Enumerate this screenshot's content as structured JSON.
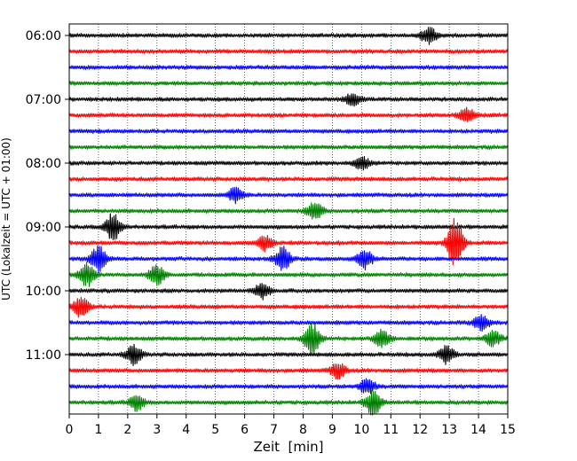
{
  "chart_data": {
    "type": "line",
    "title": "",
    "xlabel": "Zeit  [min]",
    "ylabel": "UTC (Lokalzeit = UTC + 01:00)",
    "xlim": [
      0,
      15
    ],
    "x_ticks": [
      "0",
      "1",
      "2",
      "3",
      "4",
      "5",
      "6",
      "7",
      "8",
      "9",
      "10",
      "11",
      "12",
      "13",
      "14",
      "15"
    ],
    "y_tick_labels": [
      "06:00",
      "07:00",
      "08:00",
      "09:00",
      "10:00",
      "11:00"
    ],
    "grid_x": true,
    "grid_y": false,
    "trace_colors": [
      "#000000",
      "#ff0000",
      "#0000ff",
      "#008000"
    ],
    "traces": [
      {
        "start": "06:00",
        "color": "#000000"
      },
      {
        "start": "06:15",
        "color": "#ff0000"
      },
      {
        "start": "06:30",
        "color": "#0000ff"
      },
      {
        "start": "06:45",
        "color": "#008000"
      },
      {
        "start": "07:00",
        "color": "#000000"
      },
      {
        "start": "07:15",
        "color": "#ff0000"
      },
      {
        "start": "07:30",
        "color": "#0000ff"
      },
      {
        "start": "07:45",
        "color": "#008000"
      },
      {
        "start": "08:00",
        "color": "#000000"
      },
      {
        "start": "08:15",
        "color": "#ff0000"
      },
      {
        "start": "08:30",
        "color": "#0000ff"
      },
      {
        "start": "08:45",
        "color": "#008000"
      },
      {
        "start": "09:00",
        "color": "#000000"
      },
      {
        "start": "09:15",
        "color": "#ff0000"
      },
      {
        "start": "09:30",
        "color": "#0000ff"
      },
      {
        "start": "09:45",
        "color": "#008000"
      },
      {
        "start": "10:00",
        "color": "#000000"
      },
      {
        "start": "10:15",
        "color": "#ff0000"
      },
      {
        "start": "10:30",
        "color": "#0000ff"
      },
      {
        "start": "10:45",
        "color": "#008000"
      },
      {
        "start": "11:00",
        "color": "#000000"
      },
      {
        "start": "11:15",
        "color": "#ff0000"
      },
      {
        "start": "11:30",
        "color": "#0000ff"
      },
      {
        "start": "11:45",
        "color": "#008000"
      }
    ],
    "events": [
      {
        "trace": "06:00",
        "minute": 12.3,
        "amplitude": 0.35
      },
      {
        "trace": "07:00",
        "minute": 9.7,
        "amplitude": 0.25
      },
      {
        "trace": "07:15",
        "minute": 13.6,
        "amplitude": 0.3
      },
      {
        "trace": "08:00",
        "minute": 10.0,
        "amplitude": 0.25
      },
      {
        "trace": "08:30",
        "minute": 5.7,
        "amplitude": 0.3
      },
      {
        "trace": "08:45",
        "minute": 8.4,
        "amplitude": 0.35
      },
      {
        "trace": "09:00",
        "minute": 1.5,
        "amplitude": 0.55
      },
      {
        "trace": "09:15",
        "minute": 13.2,
        "amplitude": 1.0
      },
      {
        "trace": "09:15",
        "minute": 6.7,
        "amplitude": 0.3
      },
      {
        "trace": "09:30",
        "minute": 1.0,
        "amplitude": 0.5
      },
      {
        "trace": "09:30",
        "minute": 7.3,
        "amplitude": 0.45
      },
      {
        "trace": "09:30",
        "minute": 10.1,
        "amplitude": 0.4
      },
      {
        "trace": "09:45",
        "minute": 0.6,
        "amplitude": 0.45
      },
      {
        "trace": "09:45",
        "minute": 3.0,
        "amplitude": 0.4
      },
      {
        "trace": "10:00",
        "minute": 6.6,
        "amplitude": 0.3
      },
      {
        "trace": "10:15",
        "minute": 0.4,
        "amplitude": 0.4
      },
      {
        "trace": "10:30",
        "minute": 14.1,
        "amplitude": 0.3
      },
      {
        "trace": "10:45",
        "minute": 8.3,
        "amplitude": 0.65
      },
      {
        "trace": "10:45",
        "minute": 10.7,
        "amplitude": 0.35
      },
      {
        "trace": "10:45",
        "minute": 14.5,
        "amplitude": 0.3
      },
      {
        "trace": "11:00",
        "minute": 2.2,
        "amplitude": 0.4
      },
      {
        "trace": "11:00",
        "minute": 12.9,
        "amplitude": 0.35
      },
      {
        "trace": "11:15",
        "minute": 9.2,
        "amplitude": 0.3
      },
      {
        "trace": "11:30",
        "minute": 10.2,
        "amplitude": 0.3
      },
      {
        "trace": "11:45",
        "minute": 10.4,
        "amplitude": 0.5
      },
      {
        "trace": "11:45",
        "minute": 2.3,
        "amplitude": 0.3
      }
    ]
  }
}
